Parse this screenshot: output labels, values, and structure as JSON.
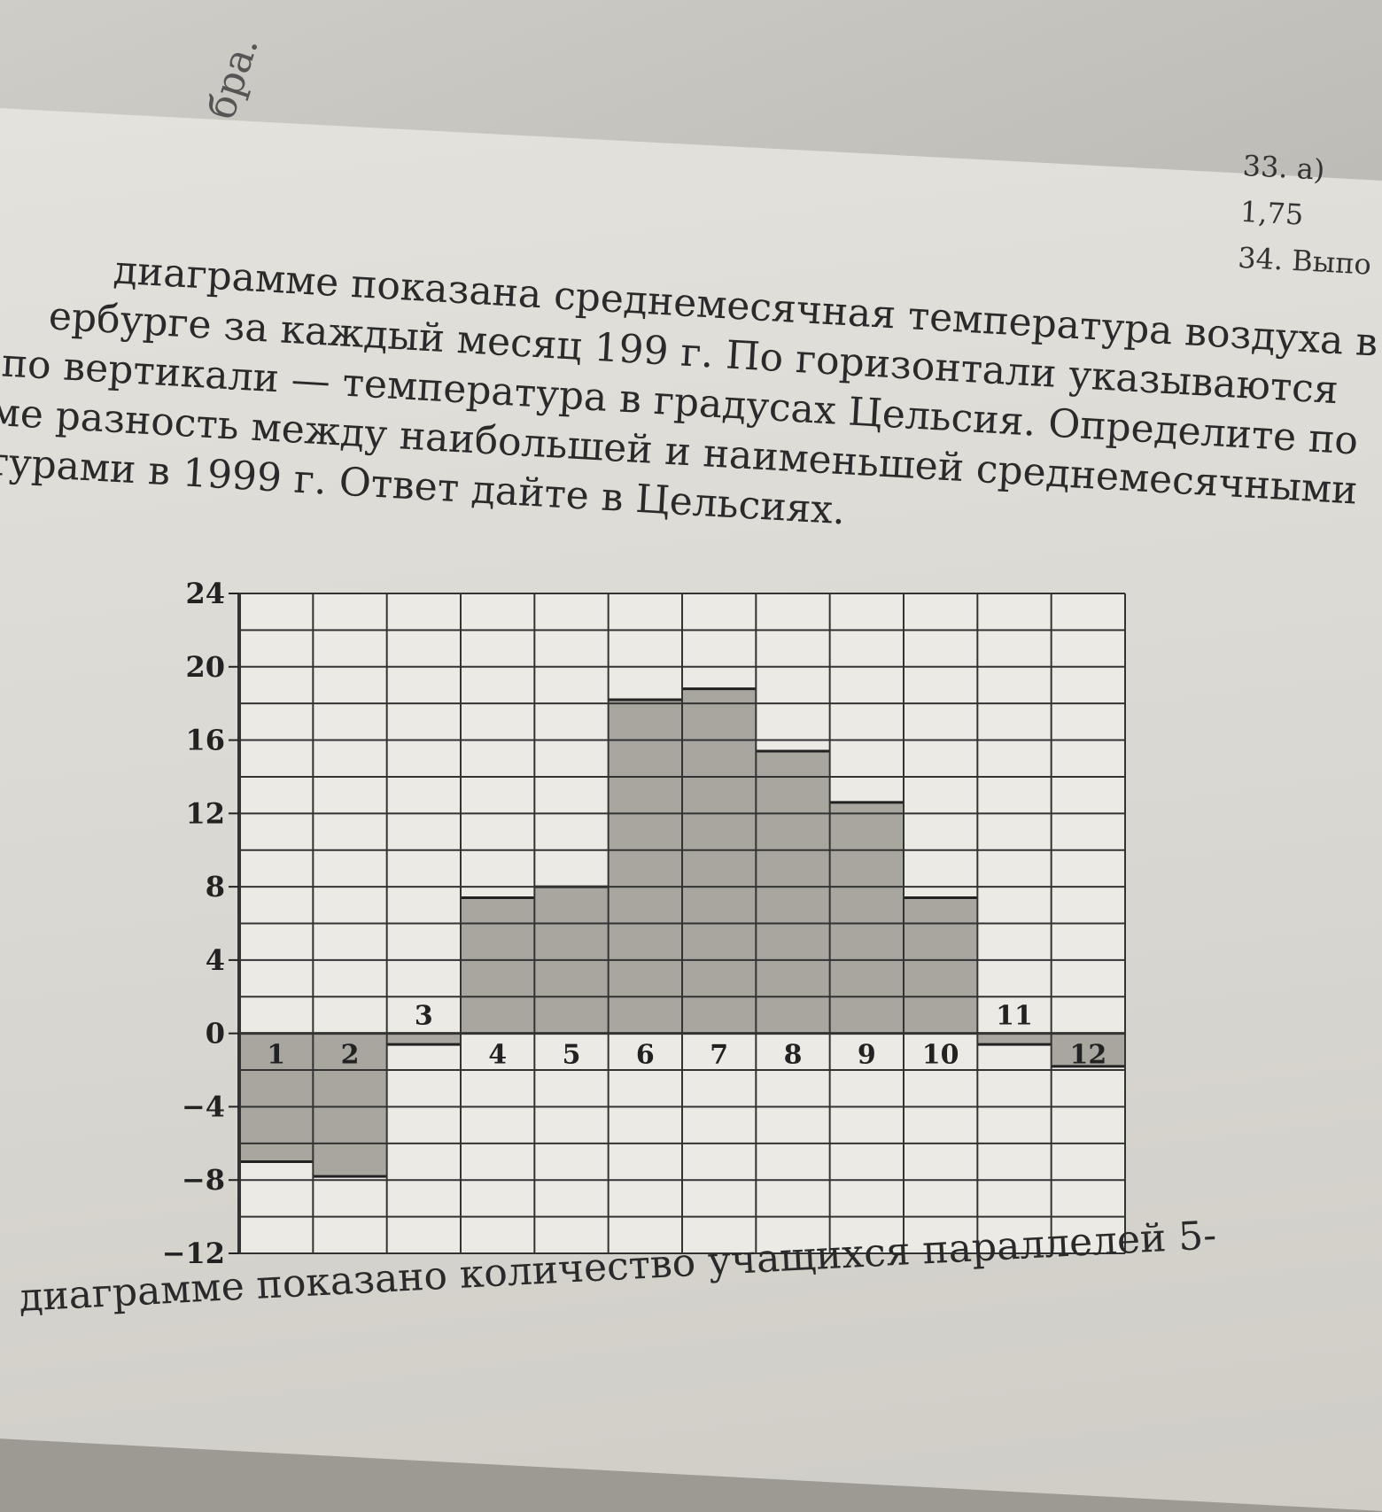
{
  "background": {
    "spine_title": "Алгебра.",
    "side_lines": [
      "33. а) 1,75",
      "34. Выпо"
    ]
  },
  "problem_text": [
    "диаграмме показана среднемесячная температура воздуха в",
    "ербурге за каждый месяц 199 г. По горизонтали указываются",
    "по вертикали — температура в градусах Цельсия. Определите по",
    "ме разность между наибольшей и наименьшей среднемесячными",
    "турами в 1999 г. Ответ дайте в Цельсиях."
  ],
  "next_problem_text": "диаграмме показано количество учащихся параллелей 5-",
  "chart_data": {
    "type": "bar",
    "title": "",
    "xlabel": "",
    "ylabel": "",
    "categories": [
      "1",
      "2",
      "3",
      "4",
      "5",
      "6",
      "7",
      "8",
      "9",
      "10",
      "11",
      "12"
    ],
    "values": [
      -7,
      -7.8,
      -0.6,
      7.4,
      8,
      18.2,
      18.8,
      15.4,
      12.6,
      7.4,
      -0.6,
      -1.8
    ],
    "ylim": [
      -12,
      24
    ],
    "yticks": [
      24,
      20,
      16,
      12,
      8,
      4,
      0,
      -4,
      -8,
      -12
    ],
    "ytick_labels": [
      "24",
      "20",
      "16",
      "12",
      "8",
      "4",
      "0",
      "−4",
      "−8",
      "−12"
    ],
    "grid": true,
    "grid_step": 2,
    "bar_color": "#a9a6a0"
  }
}
